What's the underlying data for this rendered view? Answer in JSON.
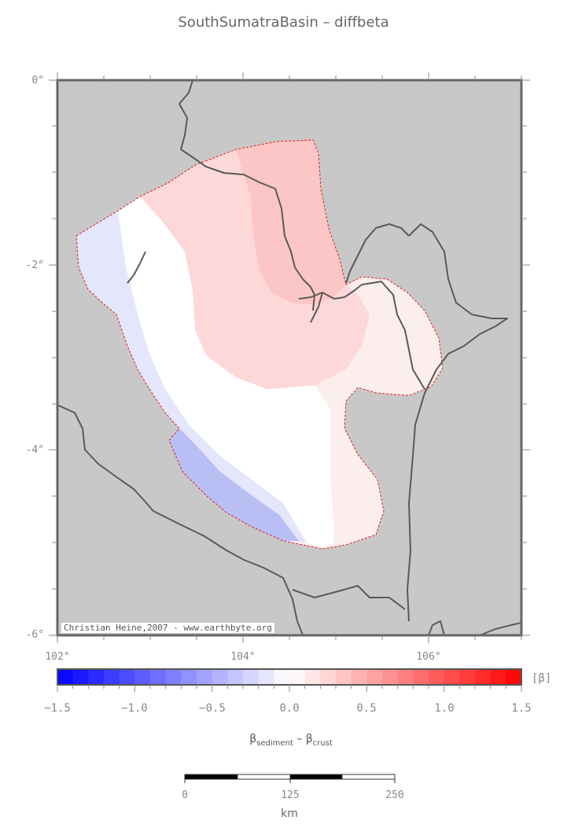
{
  "title": "SouthSumatraBasin – diffbeta",
  "map": {
    "lat_labels": [
      "0°",
      "-2°",
      "-4°",
      "-6°"
    ],
    "lon_labels": [
      "102°",
      "104°",
      "106°"
    ],
    "credit": "Christian Heine,2007 - www.earthbyte.org",
    "colors": {
      "land_sea": "#c8c8c8",
      "coast": "#5a5a5a",
      "outline": "#e02020"
    }
  },
  "colorbar": {
    "min": -1.5,
    "max": 1.5,
    "step": 0.1,
    "tick_labels": [
      "−1.5",
      "−1.0",
      "−0.5",
      "0.0",
      "0.5",
      "1.0",
      "1.5"
    ],
    "unit": "[β]",
    "title_main": "β",
    "title_sub1": "sediment",
    "title_mid": " – β",
    "title_sub2": "crust",
    "colors": {
      "low": "#0000ff",
      "mid": "#ffffff",
      "high": "#ff0000"
    }
  },
  "scalebar": {
    "labels": [
      "0",
      "125",
      "250"
    ],
    "unit": "km"
  }
}
